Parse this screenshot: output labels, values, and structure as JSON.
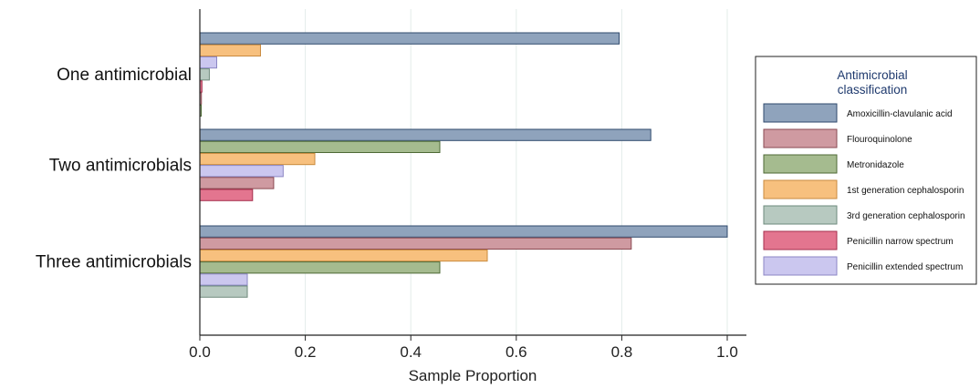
{
  "chart_data": {
    "type": "bar",
    "orientation": "horizontal",
    "xlabel": "Sample Proportion",
    "xlim": [
      0,
      1.0
    ],
    "xticks": [
      "0.0",
      "0.2",
      "0.4",
      "0.6",
      "0.8",
      "1.0"
    ],
    "grid": "vertical",
    "categories": [
      "One antimicrobial",
      "Two antimicrobials",
      "Three antimicrobials"
    ],
    "legend": {
      "title_line1": "Antimicrobial",
      "title_line2": "classification",
      "position": "right"
    },
    "series": [
      {
        "name": "Amoxicillin-clavulanic acid",
        "color": "#8fa3bc",
        "stroke": "#2f4a6d"
      },
      {
        "name": "Flouroquinolone",
        "color": "#cf9aa1",
        "stroke": "#8a4a52"
      },
      {
        "name": "Metronidazole",
        "color": "#a5bb8f",
        "stroke": "#4e6a36"
      },
      {
        "name": "1st generation cephalosporin",
        "color": "#f7c07e",
        "stroke": "#c98a3e"
      },
      {
        "name": "3rd generation cephalosporin",
        "color": "#b7c9c0",
        "stroke": "#6e8a7c"
      },
      {
        "name": "Penicillin narrow spectrum",
        "color": "#e3758f",
        "stroke": "#a62e4c"
      },
      {
        "name": "Penicillin extended spectrum",
        "color": "#cbc7ef",
        "stroke": "#8b86c4"
      }
    ],
    "groups": [
      {
        "category": "One antimicrobial",
        "bars": [
          {
            "series": "Amoxicillin-clavulanic acid",
            "value": 0.795
          },
          {
            "series": "1st generation cephalosporin",
            "value": 0.115
          },
          {
            "series": "Penicillin extended spectrum",
            "value": 0.032
          },
          {
            "series": "3rd generation cephalosporin",
            "value": 0.018
          },
          {
            "series": "Penicillin narrow spectrum",
            "value": 0.004
          },
          {
            "series": "Flouroquinolone",
            "value": 0.003
          },
          {
            "series": "Metronidazole",
            "value": 0.002
          }
        ]
      },
      {
        "category": "Two antimicrobials",
        "bars": [
          {
            "series": "Amoxicillin-clavulanic acid",
            "value": 0.855
          },
          {
            "series": "Metronidazole",
            "value": 0.455
          },
          {
            "series": "1st generation cephalosporin",
            "value": 0.218
          },
          {
            "series": "Penicillin extended spectrum",
            "value": 0.158
          },
          {
            "series": "Flouroquinolone",
            "value": 0.14
          },
          {
            "series": "Penicillin narrow spectrum",
            "value": 0.1
          }
        ]
      },
      {
        "category": "Three antimicrobials",
        "bars": [
          {
            "series": "Amoxicillin-clavulanic acid",
            "value": 1.0
          },
          {
            "series": "Flouroquinolone",
            "value": 0.818
          },
          {
            "series": "1st generation cephalosporin",
            "value": 0.545
          },
          {
            "series": "Metronidazole",
            "value": 0.455
          },
          {
            "series": "Penicillin extended spectrum",
            "value": 0.09
          },
          {
            "series": "3rd generation cephalosporin",
            "value": 0.09
          }
        ]
      }
    ]
  }
}
